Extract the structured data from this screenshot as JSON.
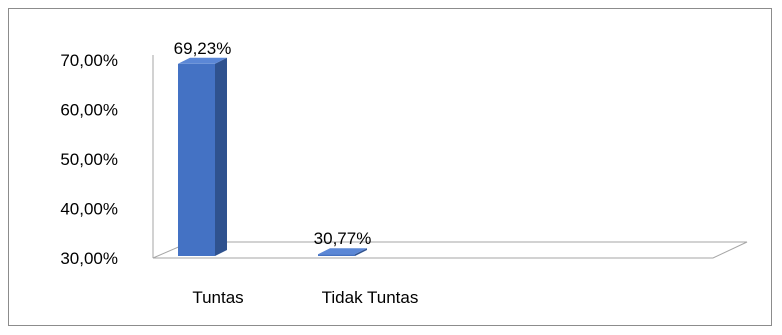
{
  "chart_data": {
    "type": "bar",
    "categories": [
      "Tuntas",
      "Tidak Tuntas"
    ],
    "values": [
      69.23,
      30.77
    ],
    "data_labels": [
      "69,23%",
      "30,77%"
    ],
    "yticks": [
      "70,00%",
      "60,00%",
      "50,00%",
      "40,00%",
      "30,00%"
    ],
    "ylim": [
      30,
      70
    ],
    "bar_color": "#4472C4",
    "bar_side_color": "#2F528F",
    "bar_top_color": "#5B87D6",
    "grid": false,
    "legend": "none",
    "style": "3d-column"
  }
}
